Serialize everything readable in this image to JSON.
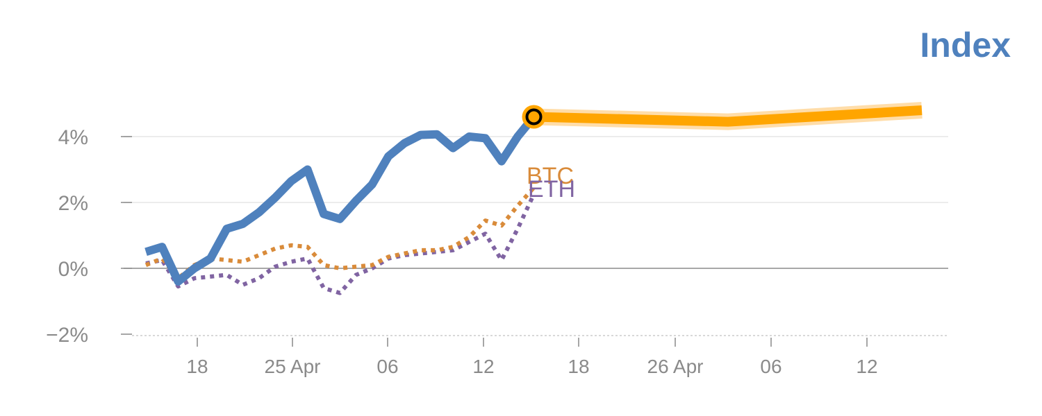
{
  "chart_data": {
    "type": "line",
    "title": "Index",
    "xlabel": "",
    "ylabel": "",
    "x_ticks": [
      "18",
      "25 Apr",
      "06",
      "12",
      "18",
      "26 Apr",
      "06",
      "12"
    ],
    "y_ticks": [
      "−2%",
      "0%",
      "2%",
      "4%"
    ],
    "ylim": [
      -2.1,
      5
    ],
    "grid": true,
    "series": [
      {
        "name": "Index",
        "style": "solid",
        "values": [
          [
            0,
            0.5
          ],
          [
            1,
            0.65
          ],
          [
            2,
            -0.4
          ],
          [
            3,
            0.0
          ],
          [
            4,
            0.3
          ],
          [
            5,
            1.2
          ],
          [
            6,
            1.35
          ],
          [
            7,
            1.7
          ],
          [
            8,
            2.15
          ],
          [
            9,
            2.65
          ],
          [
            10,
            3.0
          ],
          [
            11,
            1.65
          ],
          [
            12,
            1.5
          ],
          [
            13,
            2.05
          ],
          [
            14,
            2.55
          ],
          [
            15,
            3.4
          ],
          [
            16,
            3.8
          ],
          [
            17,
            4.05
          ],
          [
            18,
            4.07
          ],
          [
            19,
            3.65
          ],
          [
            20,
            4.0
          ],
          [
            21,
            3.95
          ],
          [
            22,
            3.25
          ],
          [
            23,
            4.0
          ],
          [
            24,
            4.6
          ]
        ]
      },
      {
        "name": "BTC",
        "style": "dotted",
        "values": [
          [
            0,
            0.1
          ],
          [
            1,
            0.3
          ],
          [
            2,
            -0.3
          ],
          [
            3,
            0.1
          ],
          [
            4,
            0.3
          ],
          [
            5,
            0.25
          ],
          [
            6,
            0.2
          ],
          [
            7,
            0.4
          ],
          [
            8,
            0.6
          ],
          [
            9,
            0.7
          ],
          [
            10,
            0.65
          ],
          [
            11,
            0.1
          ],
          [
            12,
            0.0
          ],
          [
            13,
            0.05
          ],
          [
            14,
            0.1
          ],
          [
            15,
            0.35
          ],
          [
            16,
            0.45
          ],
          [
            17,
            0.55
          ],
          [
            18,
            0.55
          ],
          [
            19,
            0.65
          ],
          [
            20,
            0.95
          ],
          [
            21,
            1.45
          ],
          [
            22,
            1.3
          ],
          [
            23,
            1.9
          ],
          [
            24,
            2.45
          ]
        ]
      },
      {
        "name": "ETH",
        "style": "dotted",
        "values": [
          [
            0,
            0.15
          ],
          [
            1,
            0.25
          ],
          [
            2,
            -0.55
          ],
          [
            3,
            -0.3
          ],
          [
            4,
            -0.25
          ],
          [
            5,
            -0.2
          ],
          [
            6,
            -0.5
          ],
          [
            7,
            -0.3
          ],
          [
            8,
            0.05
          ],
          [
            9,
            0.2
          ],
          [
            10,
            0.3
          ],
          [
            11,
            -0.6
          ],
          [
            12,
            -0.75
          ],
          [
            13,
            -0.2
          ],
          [
            14,
            0.0
          ],
          [
            15,
            0.3
          ],
          [
            16,
            0.4
          ],
          [
            17,
            0.45
          ],
          [
            18,
            0.5
          ],
          [
            19,
            0.55
          ],
          [
            20,
            0.8
          ],
          [
            21,
            1.05
          ],
          [
            22,
            0.25
          ],
          [
            23,
            1.2
          ],
          [
            24,
            2.25
          ]
        ]
      },
      {
        "name": "",
        "style": "projection",
        "values": [
          [
            24,
            4.6
          ],
          [
            36,
            4.45
          ],
          [
            48,
            4.8
          ]
        ]
      }
    ],
    "colors": {
      "index": "#4f81bd",
      "btc": "#d98b3a",
      "eth": "#8064a2",
      "projection": "#ffa500",
      "projection_glow": "#ffd9a0",
      "axis": "#8a8a8a",
      "grid": "#e6e6e6",
      "zero_line": "#8a8a8a"
    }
  }
}
